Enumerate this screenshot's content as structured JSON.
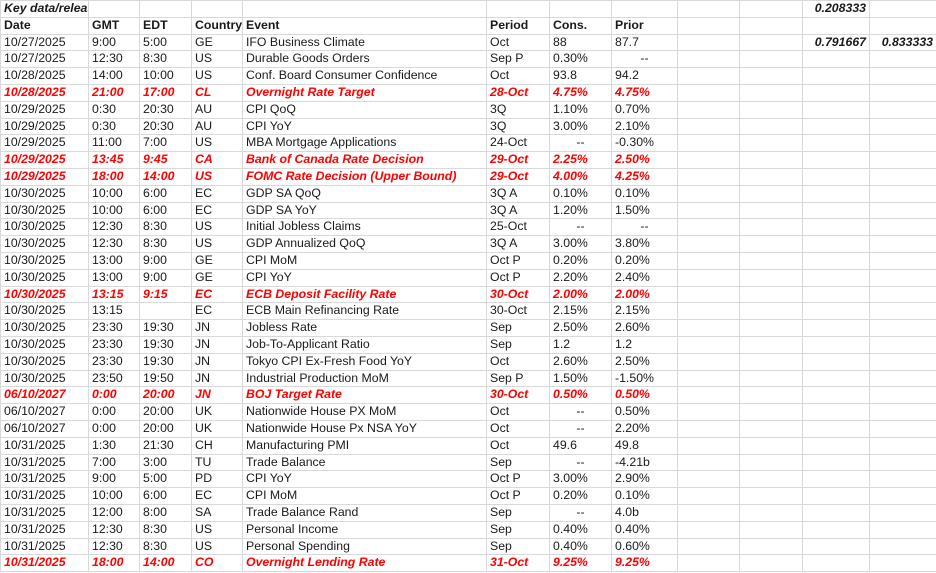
{
  "sheet": {
    "title": "Key data/releases",
    "side_values": {
      "r1c10": "0.208333",
      "r2c10": "0.791667",
      "r2c11": "0.833333"
    },
    "headers": [
      "Date",
      "GMT",
      "EDT",
      "Country",
      "Event",
      "Period",
      "Cons.",
      "Prior"
    ],
    "highlight_color": "#ff0000",
    "rows": [
      {
        "hl": false,
        "cells": [
          "10/27/2025",
          "9:00",
          "5:00",
          "GE",
          "IFO Business Climate",
          "Oct",
          "88",
          "87.7"
        ]
      },
      {
        "hl": false,
        "cells": [
          "10/27/2025",
          "12:30",
          "8:30",
          "US",
          "Durable Goods Orders",
          "Sep P",
          "0.30%",
          "--"
        ]
      },
      {
        "hl": false,
        "cells": [
          "10/28/2025",
          "14:00",
          "10:00",
          "US",
          "Conf. Board Consumer Confidence",
          "Oct",
          "93.8",
          "94.2"
        ]
      },
      {
        "hl": true,
        "cells": [
          "10/28/2025",
          "21:00",
          "17:00",
          "CL",
          "Overnight Rate Target",
          "28-Oct",
          "4.75%",
          "4.75%"
        ]
      },
      {
        "hl": false,
        "cells": [
          "10/29/2025",
          "0:30",
          "20:30",
          "AU",
          "CPI QoQ",
          "3Q",
          "1.10%",
          "0.70%"
        ]
      },
      {
        "hl": false,
        "cells": [
          "10/29/2025",
          "0:30",
          "20:30",
          "AU",
          "CPI YoY",
          "3Q",
          "3.00%",
          "2.10%"
        ]
      },
      {
        "hl": false,
        "cells": [
          "10/29/2025",
          "11:00",
          "7:00",
          "US",
          "MBA Mortgage Applications",
          "24-Oct",
          "--",
          "-0.30%"
        ]
      },
      {
        "hl": true,
        "cells": [
          "10/29/2025",
          "13:45",
          "9:45",
          "CA",
          "Bank of Canada Rate Decision",
          "29-Oct",
          "2.25%",
          "2.50%"
        ]
      },
      {
        "hl": true,
        "cells": [
          "10/29/2025",
          "18:00",
          "14:00",
          "US",
          "FOMC Rate Decision (Upper Bound)",
          "29-Oct",
          "4.00%",
          "4.25%"
        ]
      },
      {
        "hl": false,
        "cells": [
          "10/30/2025",
          "10:00",
          "6:00",
          "EC",
          "GDP SA QoQ",
          "3Q A",
          "0.10%",
          "0.10%"
        ]
      },
      {
        "hl": false,
        "cells": [
          "10/30/2025",
          "10:00",
          "6:00",
          "EC",
          "GDP SA YoY",
          "3Q A",
          "1.20%",
          "1.50%"
        ]
      },
      {
        "hl": false,
        "cells": [
          "10/30/2025",
          "12:30",
          "8:30",
          "US",
          "Initial Jobless Claims",
          "25-Oct",
          "--",
          "--"
        ]
      },
      {
        "hl": false,
        "cells": [
          "10/30/2025",
          "12:30",
          "8:30",
          "US",
          "GDP Annualized QoQ",
          "3Q A",
          "3.00%",
          "3.80%"
        ]
      },
      {
        "hl": false,
        "cells": [
          "10/30/2025",
          "13:00",
          "9:00",
          "GE",
          "CPI MoM",
          "Oct P",
          "0.20%",
          "0.20%"
        ]
      },
      {
        "hl": false,
        "cells": [
          "10/30/2025",
          "13:00",
          "9:00",
          "GE",
          "CPI YoY",
          "Oct P",
          "2.20%",
          "2.40%"
        ]
      },
      {
        "hl": true,
        "cells": [
          "10/30/2025",
          "13:15",
          "9:15",
          "EC",
          "ECB Deposit Facility Rate",
          "30-Oct",
          "2.00%",
          "2.00%"
        ]
      },
      {
        "hl": false,
        "cells": [
          "10/30/2025",
          "13:15",
          "",
          "EC",
          "ECB Main Refinancing Rate",
          "30-Oct",
          "2.15%",
          "2.15%"
        ]
      },
      {
        "hl": false,
        "cells": [
          "10/30/2025",
          "23:30",
          "19:30",
          "JN",
          "Jobless Rate",
          "Sep",
          "2.50%",
          "2.60%"
        ]
      },
      {
        "hl": false,
        "cells": [
          "10/30/2025",
          "23:30",
          "19:30",
          "JN",
          "Job-To-Applicant Ratio",
          "Sep",
          "1.2",
          "1.2"
        ]
      },
      {
        "hl": false,
        "cells": [
          "10/30/2025",
          "23:30",
          "19:30",
          "JN",
          "Tokyo CPI Ex-Fresh Food YoY",
          "Oct",
          "2.60%",
          "2.50%"
        ]
      },
      {
        "hl": false,
        "cells": [
          "10/30/2025",
          "23:50",
          "19:50",
          "JN",
          "Industrial Production MoM",
          "Sep P",
          "1.50%",
          "-1.50%"
        ]
      },
      {
        "hl": true,
        "cells": [
          "06/10/2027",
          "0:00",
          "20:00",
          "JN",
          "BOJ Target Rate",
          "30-Oct",
          "0.50%",
          "0.50%"
        ]
      },
      {
        "hl": false,
        "cells": [
          "06/10/2027",
          "0:00",
          "20:00",
          "UK",
          "Nationwide House PX MoM",
          "Oct",
          "--",
          "0.50%"
        ]
      },
      {
        "hl": false,
        "cells": [
          "06/10/2027",
          "0:00",
          "20:00",
          "UK",
          "Nationwide House Px NSA YoY",
          "Oct",
          "--",
          "2.20%"
        ]
      },
      {
        "hl": false,
        "cells": [
          "10/31/2025",
          "1:30",
          "21:30",
          "CH",
          "Manufacturing PMI",
          "Oct",
          "49.6",
          "49.8"
        ]
      },
      {
        "hl": false,
        "cells": [
          "10/31/2025",
          "7:00",
          "3:00",
          "TU",
          "Trade Balance",
          "Sep",
          "--",
          "-4.21b"
        ]
      },
      {
        "hl": false,
        "cells": [
          "10/31/2025",
          "9:00",
          "5:00",
          "PD",
          "CPI YoY",
          "Oct P",
          "3.00%",
          "2.90%"
        ]
      },
      {
        "hl": false,
        "cells": [
          "10/31/2025",
          "10:00",
          "6:00",
          "EC",
          "CPI MoM",
          "Oct P",
          "0.20%",
          "0.10%"
        ]
      },
      {
        "hl": false,
        "cells": [
          "10/31/2025",
          "12:00",
          "8:00",
          "SA",
          "Trade Balance Rand",
          "Sep",
          "--",
          "4.0b"
        ]
      },
      {
        "hl": false,
        "cells": [
          "10/31/2025",
          "12:30",
          "8:30",
          "US",
          "Personal Income",
          "Sep",
          "0.40%",
          "0.40%"
        ]
      },
      {
        "hl": false,
        "cells": [
          "10/31/2025",
          "12:30",
          "8:30",
          "US",
          "Personal Spending",
          "Sep",
          "0.40%",
          "0.60%"
        ]
      },
      {
        "hl": true,
        "cells": [
          "10/31/2025",
          "18:00",
          "14:00",
          "CO",
          "Overnight Lending Rate",
          "31-Oct",
          "9.25%",
          "9.25%"
        ]
      }
    ]
  }
}
